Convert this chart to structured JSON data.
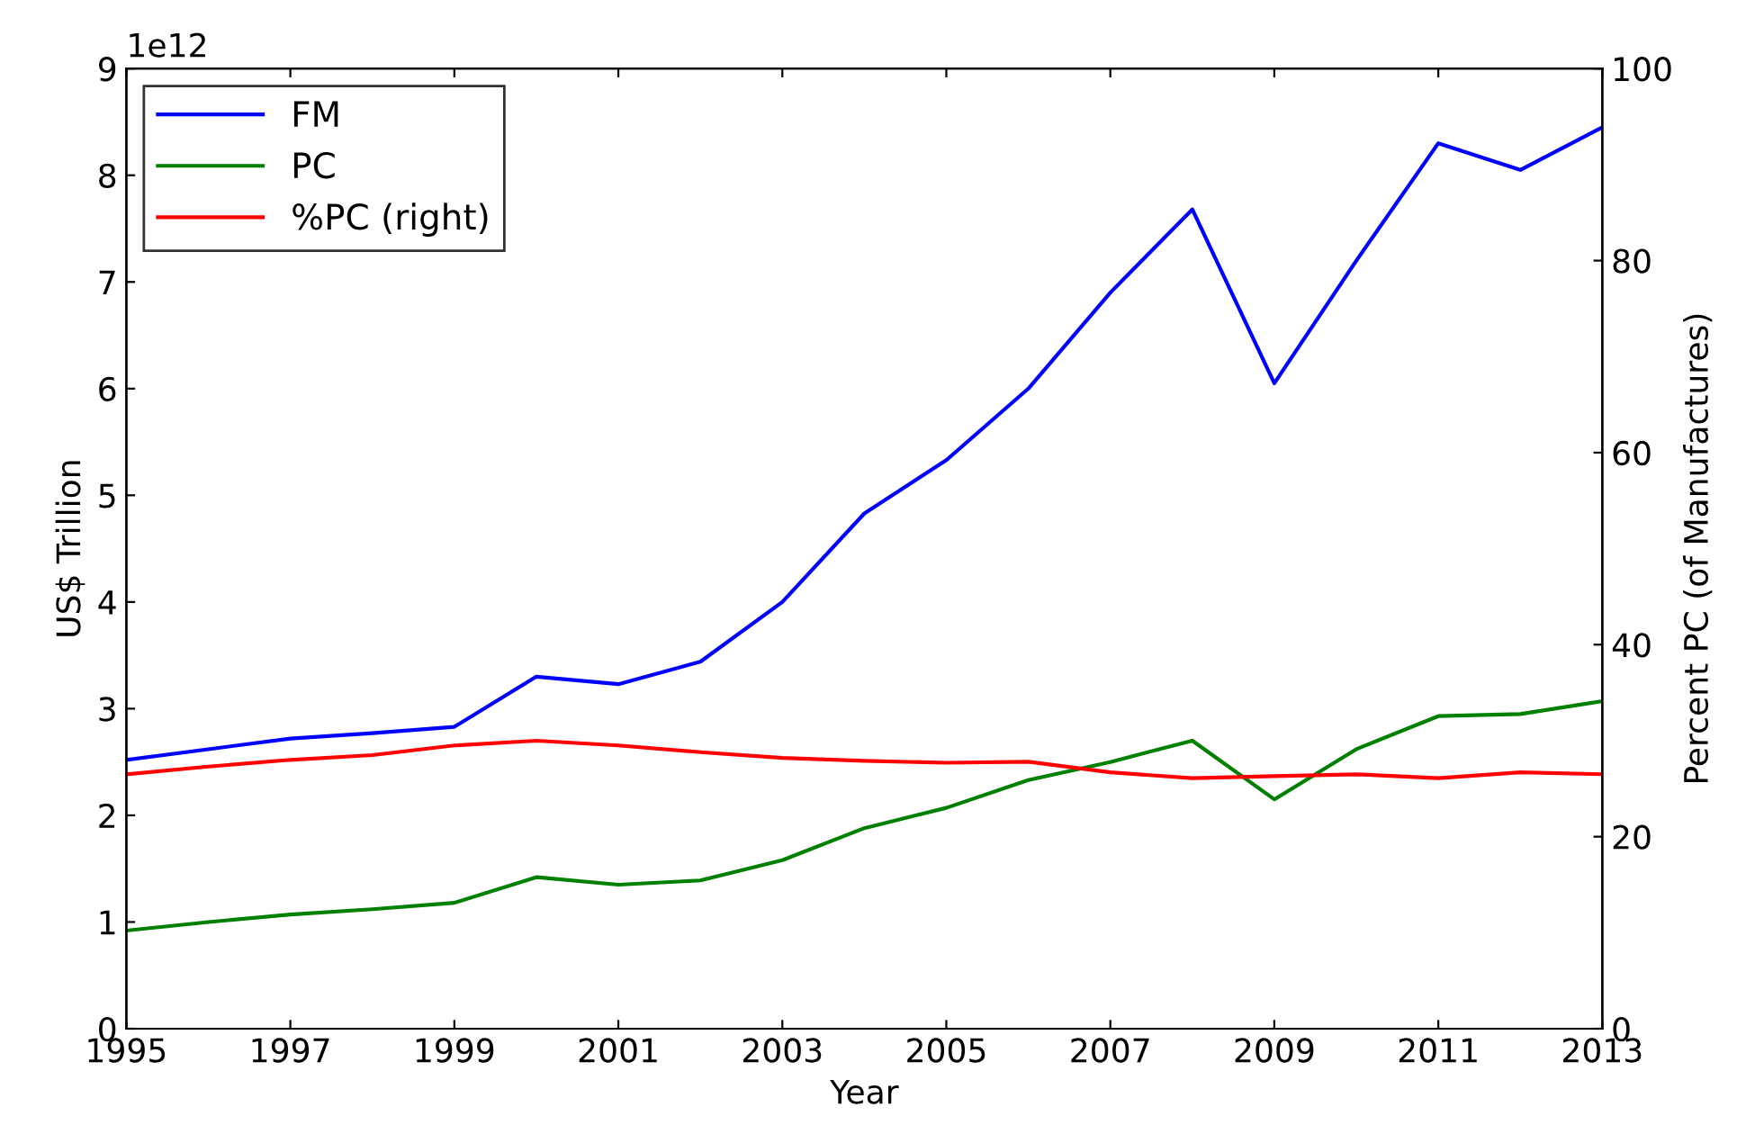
{
  "chart_data": {
    "type": "line",
    "xlabel": "Year",
    "ylabel": "US$ Trillion",
    "y2label": "Percent PC (of Manufactures)",
    "x": [
      1995,
      1996,
      1997,
      1998,
      1999,
      2000,
      2001,
      2002,
      2003,
      2004,
      2005,
      2006,
      2007,
      2008,
      2009,
      2010,
      2011,
      2012,
      2013
    ],
    "series": [
      {
        "name": "FM",
        "color": "#0000ff",
        "values": [
          2.52,
          2.62,
          2.72,
          2.77,
          2.83,
          3.3,
          3.23,
          3.44,
          4.0,
          4.83,
          5.33,
          6.0,
          6.9,
          7.68,
          6.05,
          7.2,
          8.3,
          8.05,
          8.45
        ]
      },
      {
        "name": "PC",
        "color": "#008000",
        "values": [
          0.92,
          1.0,
          1.07,
          1.12,
          1.18,
          1.42,
          1.35,
          1.39,
          1.58,
          1.88,
          2.07,
          2.33,
          2.5,
          2.7,
          2.15,
          2.62,
          2.93,
          2.95,
          3.07
        ]
      },
      {
        "name": "%PC (right)",
        "color": "#ff0000",
        "axis": "y2",
        "values": [
          26.5,
          27.3,
          28.0,
          28.5,
          29.5,
          30.0,
          29.5,
          28.8,
          28.2,
          27.9,
          27.7,
          27.8,
          26.7,
          26.1,
          26.3,
          26.5,
          26.1,
          26.7,
          26.5
        ]
      }
    ],
    "xlim": [
      1995,
      2013
    ],
    "xticks": [
      1995,
      1997,
      1999,
      2001,
      2003,
      2005,
      2007,
      2009,
      2011,
      2013
    ],
    "ylim": [
      0,
      9
    ],
    "yticks": [
      0,
      1,
      2,
      3,
      4,
      5,
      6,
      7,
      8,
      9
    ],
    "y2lim": [
      0,
      100
    ],
    "y2ticks": [
      0,
      20,
      40,
      60,
      80,
      100
    ],
    "annotations": [
      "1e12"
    ],
    "legend": "top left",
    "grid": false
  }
}
